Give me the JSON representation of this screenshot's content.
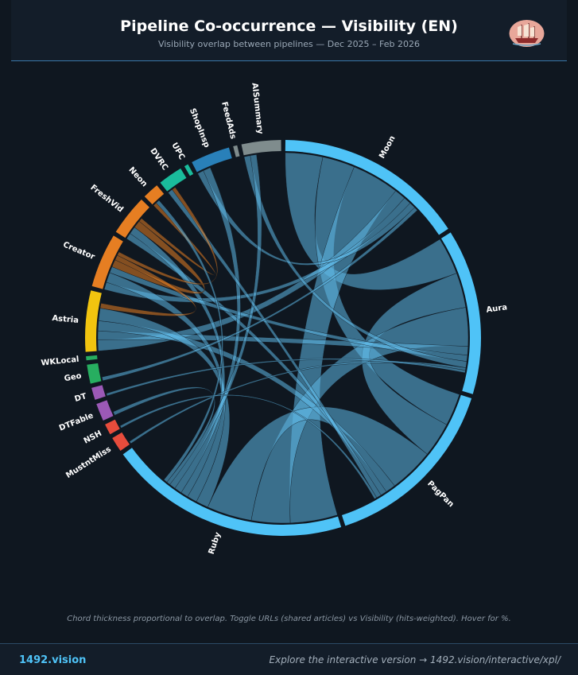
{
  "header": {
    "title": "Pipeline Co-occurrence — Visibility (EN)",
    "subtitle": "Visibility overlap between pipelines — Dec 2025 – Feb 2026"
  },
  "chart_data": {
    "type": "chord",
    "groups": [
      {
        "name": "Moon",
        "value": 14.0,
        "color": "#4fc3f7"
      },
      {
        "name": "Aura",
        "value": 12.2,
        "color": "#4fc3f7"
      },
      {
        "name": "PagPan",
        "value": 13.5,
        "color": "#4fc3f7"
      },
      {
        "name": "Ruby",
        "value": 17.8,
        "color": "#4fc3f7"
      },
      {
        "name": "MustntMiss",
        "value": 1.1,
        "color": "#e74c3c"
      },
      {
        "name": "NSH",
        "value": 0.8,
        "color": "#e74c3c"
      },
      {
        "name": "DTFable",
        "value": 1.3,
        "color": "#9b59b6"
      },
      {
        "name": "DT",
        "value": 0.9,
        "color": "#9b59b6"
      },
      {
        "name": "Geo",
        "value": 1.4,
        "color": "#27ae60"
      },
      {
        "name": "WKLocal",
        "value": 0.3,
        "color": "#27ae60"
      },
      {
        "name": "Astria",
        "value": 4.5,
        "color": "#f1c40f"
      },
      {
        "name": "Creator",
        "value": 4.0,
        "color": "#e67e22"
      },
      {
        "name": "FreshVid",
        "value": 3.0,
        "color": "#e67e22"
      },
      {
        "name": "Neon",
        "value": 1.2,
        "color": "#e67e22"
      },
      {
        "name": "DVRC",
        "value": 1.8,
        "color": "#1abc9c"
      },
      {
        "name": "UPC",
        "value": 0.3,
        "color": "#1abc9c"
      },
      {
        "name": "ShopInsp",
        "value": 2.9,
        "color": "#2980b9"
      },
      {
        "name": "FeedAds",
        "value": 0.3,
        "color": "#7f8c8d"
      },
      {
        "name": "AISummary",
        "value": 2.9,
        "color": "#7f8c8d"
      }
    ],
    "chords": [
      [
        "Moon",
        "Aura",
        3.0
      ],
      [
        "Moon",
        "PagPan",
        2.6
      ],
      [
        "Moon",
        "Ruby",
        3.8
      ],
      [
        "Aura",
        "PagPan",
        2.8
      ],
      [
        "Aura",
        "Ruby",
        3.1
      ],
      [
        "PagPan",
        "Ruby",
        3.6
      ],
      [
        "Moon",
        "Astria",
        0.9
      ],
      [
        "Aura",
        "Astria",
        0.7
      ],
      [
        "PagPan",
        "Astria",
        0.8
      ],
      [
        "Ruby",
        "Astria",
        1.0
      ],
      [
        "Moon",
        "Creator",
        0.6
      ],
      [
        "Ruby",
        "Creator",
        0.8
      ],
      [
        "PagPan",
        "FreshVid",
        0.5
      ],
      [
        "Ruby",
        "FreshVid",
        0.6
      ],
      [
        "Aura",
        "Creator",
        0.5
      ],
      [
        "Moon",
        "ShopInsp",
        0.5
      ],
      [
        "Ruby",
        "ShopInsp",
        0.6
      ],
      [
        "Aura",
        "AISummary",
        0.5
      ],
      [
        "Ruby",
        "AISummary",
        0.5
      ],
      [
        "PagPan",
        "DVRC",
        0.4
      ],
      [
        "Moon",
        "Geo",
        0.3
      ],
      [
        "Ruby",
        "DTFable",
        0.3
      ],
      [
        "Aura",
        "MustntMiss",
        0.2
      ],
      [
        "Creator",
        "FreshVid",
        0.6
      ],
      [
        "Creator",
        "Astria",
        0.4
      ],
      [
        "FreshVid",
        "Neon",
        0.3
      ],
      [
        "Creator",
        "DVRC",
        0.3
      ],
      [
        "Ruby",
        "Neon",
        0.3
      ],
      [
        "Aura",
        "DT",
        0.2
      ],
      [
        "PagPan",
        "NSH",
        0.2
      ]
    ]
  },
  "footnote": "Chord thickness proportional to overlap. Toggle URLs (shared articles) vs Visibility (hits-weighted). Hover for %.",
  "footer": {
    "brand": "1492.vision",
    "explore": "Explore the interactive version → 1492.vision/interactive/xpl/"
  },
  "logo": {
    "icon": "ship-icon"
  }
}
